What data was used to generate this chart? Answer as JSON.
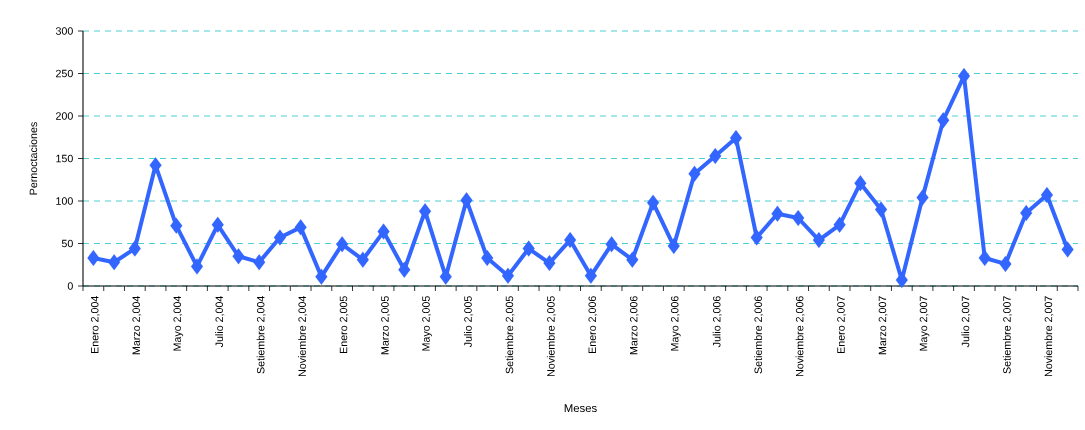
{
  "chart_data": {
    "type": "line",
    "xlabel": "Meses",
    "ylabel": "Pernoctaciones",
    "categories": [
      "Enero 2,004",
      null,
      "Marzo 2,004",
      null,
      "Mayo 2,004",
      null,
      "Julio 2,004",
      null,
      "Setiembre 2,004",
      null,
      "Noviembre 2,004",
      null,
      "Enero 2,005",
      null,
      "Marzo 2,005",
      null,
      "Mayo 2,005",
      null,
      "Julio 2,005",
      null,
      "Setiembre 2,005",
      null,
      "Noviembre 2,005",
      null,
      "Enero 2,006",
      null,
      "Marzo 2,006",
      null,
      "Mayo 2,006",
      null,
      "Julio 2,006",
      null,
      "Setiembre 2,006",
      null,
      "Noviembre 2,006",
      null,
      "Enero 2,007",
      null,
      "Marzo 2,007",
      null,
      "Mayo 2,007",
      null,
      "Julio 2,007",
      null,
      "Setiembre 2,007",
      null,
      "Noviembre 2,007",
      null
    ],
    "values": [
      33,
      28,
      44,
      142,
      71,
      23,
      72,
      35,
      28,
      57,
      69,
      11,
      49,
      31,
      64,
      19,
      88,
      11,
      101,
      33,
      12,
      44,
      27,
      54,
      12,
      49,
      31,
      98,
      47,
      132,
      153,
      174,
      57,
      85,
      80,
      54,
      72,
      121,
      90,
      7,
      104,
      195,
      247,
      33,
      26,
      86,
      107,
      43
    ],
    "color": "#3366ff",
    "marker": "diamond",
    "line_style": "solid",
    "grid": "y",
    "ylim": [
      0,
      300
    ],
    "yticks": [
      0,
      50,
      100,
      150,
      200,
      250,
      300
    ]
  }
}
